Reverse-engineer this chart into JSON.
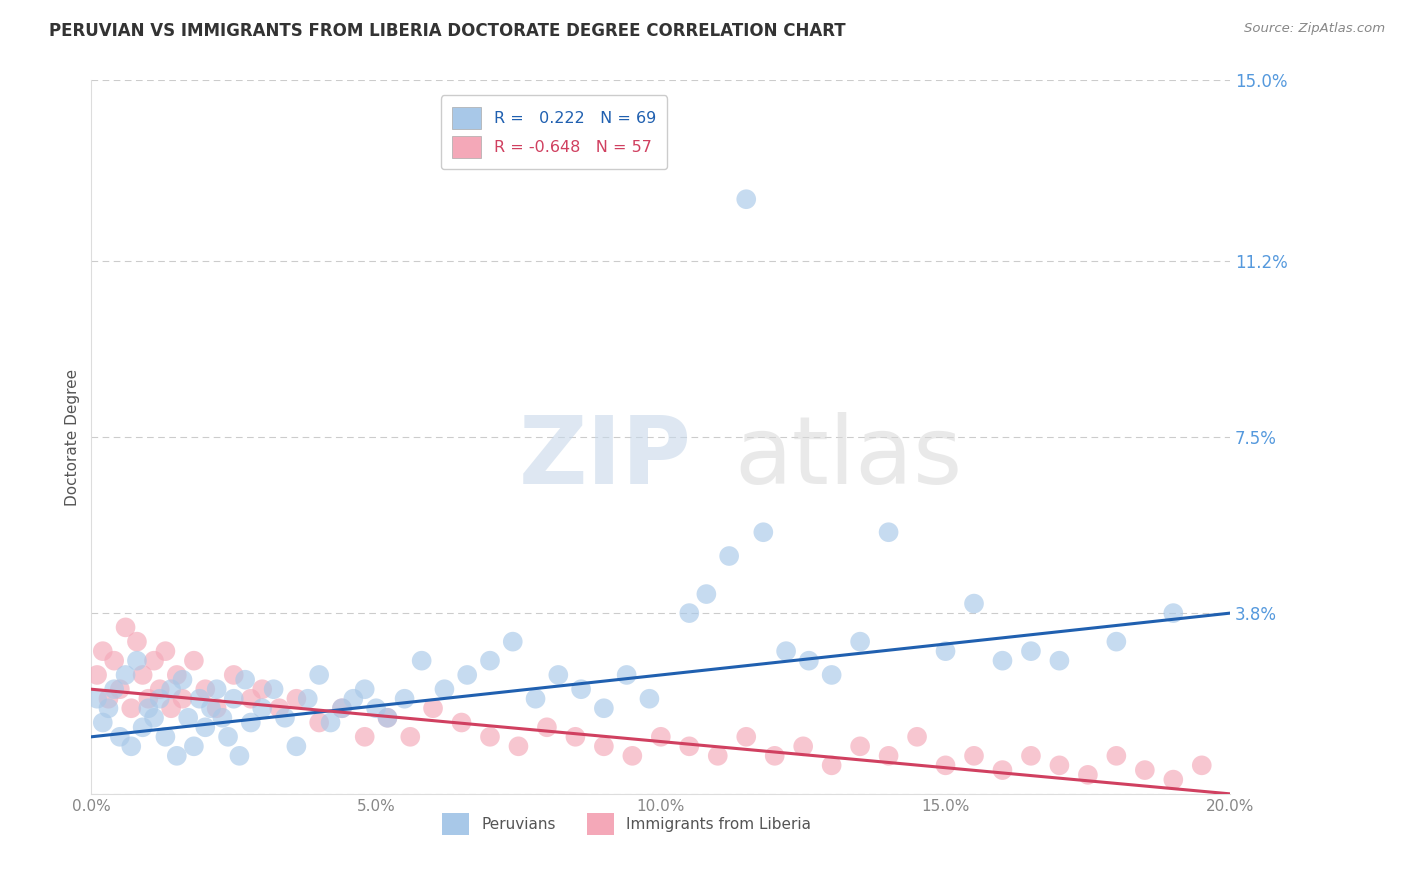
{
  "title": "PERUVIAN VS IMMIGRANTS FROM LIBERIA DOCTORATE DEGREE CORRELATION CHART",
  "source": "Source: ZipAtlas.com",
  "ylabel": "Doctorate Degree",
  "xlim": [
    0.0,
    0.2
  ],
  "ylim": [
    0.0,
    0.15
  ],
  "xticks": [
    0.0,
    0.05,
    0.1,
    0.15,
    0.2
  ],
  "xtick_labels": [
    "0.0%",
    "5.0%",
    "10.0%",
    "15.0%",
    "20.0%"
  ],
  "yticks": [
    0.0,
    0.038,
    0.075,
    0.112,
    0.15
  ],
  "ytick_labels": [
    "",
    "3.8%",
    "7.5%",
    "11.2%",
    "15.0%"
  ],
  "blue_R": 0.222,
  "blue_N": 69,
  "pink_R": -0.648,
  "pink_N": 57,
  "blue_color": "#a8c8e8",
  "pink_color": "#f4a8b8",
  "blue_line_color": "#2060b0",
  "pink_line_color": "#d04060",
  "legend_label_blue": "Peruvians",
  "legend_label_pink": "Immigrants from Liberia",
  "watermark_zip": "ZIP",
  "watermark_atlas": "atlas",
  "background_color": "#ffffff",
  "title_color": "#333333",
  "axis_label_color": "#555555",
  "tick_color_y": "#5599dd",
  "tick_color_x": "#888888",
  "grid_color": "#cccccc",
  "source_color": "#888888",
  "blue_x": [
    0.001,
    0.002,
    0.003,
    0.004,
    0.005,
    0.006,
    0.007,
    0.008,
    0.009,
    0.01,
    0.011,
    0.012,
    0.013,
    0.014,
    0.015,
    0.016,
    0.017,
    0.018,
    0.019,
    0.02,
    0.021,
    0.022,
    0.023,
    0.024,
    0.025,
    0.026,
    0.027,
    0.028,
    0.03,
    0.032,
    0.034,
    0.036,
    0.038,
    0.04,
    0.042,
    0.044,
    0.046,
    0.048,
    0.05,
    0.052,
    0.055,
    0.058,
    0.062,
    0.066,
    0.07,
    0.074,
    0.078,
    0.082,
    0.086,
    0.09,
    0.094,
    0.098,
    0.105,
    0.108,
    0.112,
    0.115,
    0.118,
    0.122,
    0.126,
    0.13,
    0.135,
    0.14,
    0.15,
    0.155,
    0.16,
    0.165,
    0.17,
    0.18,
    0.19
  ],
  "blue_y": [
    0.02,
    0.015,
    0.018,
    0.022,
    0.012,
    0.025,
    0.01,
    0.028,
    0.014,
    0.018,
    0.016,
    0.02,
    0.012,
    0.022,
    0.008,
    0.024,
    0.016,
    0.01,
    0.02,
    0.014,
    0.018,
    0.022,
    0.016,
    0.012,
    0.02,
    0.008,
    0.024,
    0.015,
    0.018,
    0.022,
    0.016,
    0.01,
    0.02,
    0.025,
    0.015,
    0.018,
    0.02,
    0.022,
    0.018,
    0.016,
    0.02,
    0.028,
    0.022,
    0.025,
    0.028,
    0.032,
    0.02,
    0.025,
    0.022,
    0.018,
    0.025,
    0.02,
    0.038,
    0.042,
    0.05,
    0.125,
    0.055,
    0.03,
    0.028,
    0.025,
    0.032,
    0.055,
    0.03,
    0.04,
    0.028,
    0.03,
    0.028,
    0.032,
    0.038
  ],
  "pink_x": [
    0.001,
    0.002,
    0.003,
    0.004,
    0.005,
    0.006,
    0.007,
    0.008,
    0.009,
    0.01,
    0.011,
    0.012,
    0.013,
    0.014,
    0.015,
    0.016,
    0.018,
    0.02,
    0.022,
    0.025,
    0.028,
    0.03,
    0.033,
    0.036,
    0.04,
    0.044,
    0.048,
    0.052,
    0.056,
    0.06,
    0.065,
    0.07,
    0.075,
    0.08,
    0.085,
    0.09,
    0.095,
    0.1,
    0.105,
    0.11,
    0.115,
    0.12,
    0.125,
    0.13,
    0.135,
    0.14,
    0.145,
    0.15,
    0.155,
    0.16,
    0.165,
    0.17,
    0.175,
    0.18,
    0.185,
    0.19,
    0.195
  ],
  "pink_y": [
    0.025,
    0.03,
    0.02,
    0.028,
    0.022,
    0.035,
    0.018,
    0.032,
    0.025,
    0.02,
    0.028,
    0.022,
    0.03,
    0.018,
    0.025,
    0.02,
    0.028,
    0.022,
    0.018,
    0.025,
    0.02,
    0.022,
    0.018,
    0.02,
    0.015,
    0.018,
    0.012,
    0.016,
    0.012,
    0.018,
    0.015,
    0.012,
    0.01,
    0.014,
    0.012,
    0.01,
    0.008,
    0.012,
    0.01,
    0.008,
    0.012,
    0.008,
    0.01,
    0.006,
    0.01,
    0.008,
    0.012,
    0.006,
    0.008,
    0.005,
    0.008,
    0.006,
    0.004,
    0.008,
    0.005,
    0.003,
    0.006
  ]
}
